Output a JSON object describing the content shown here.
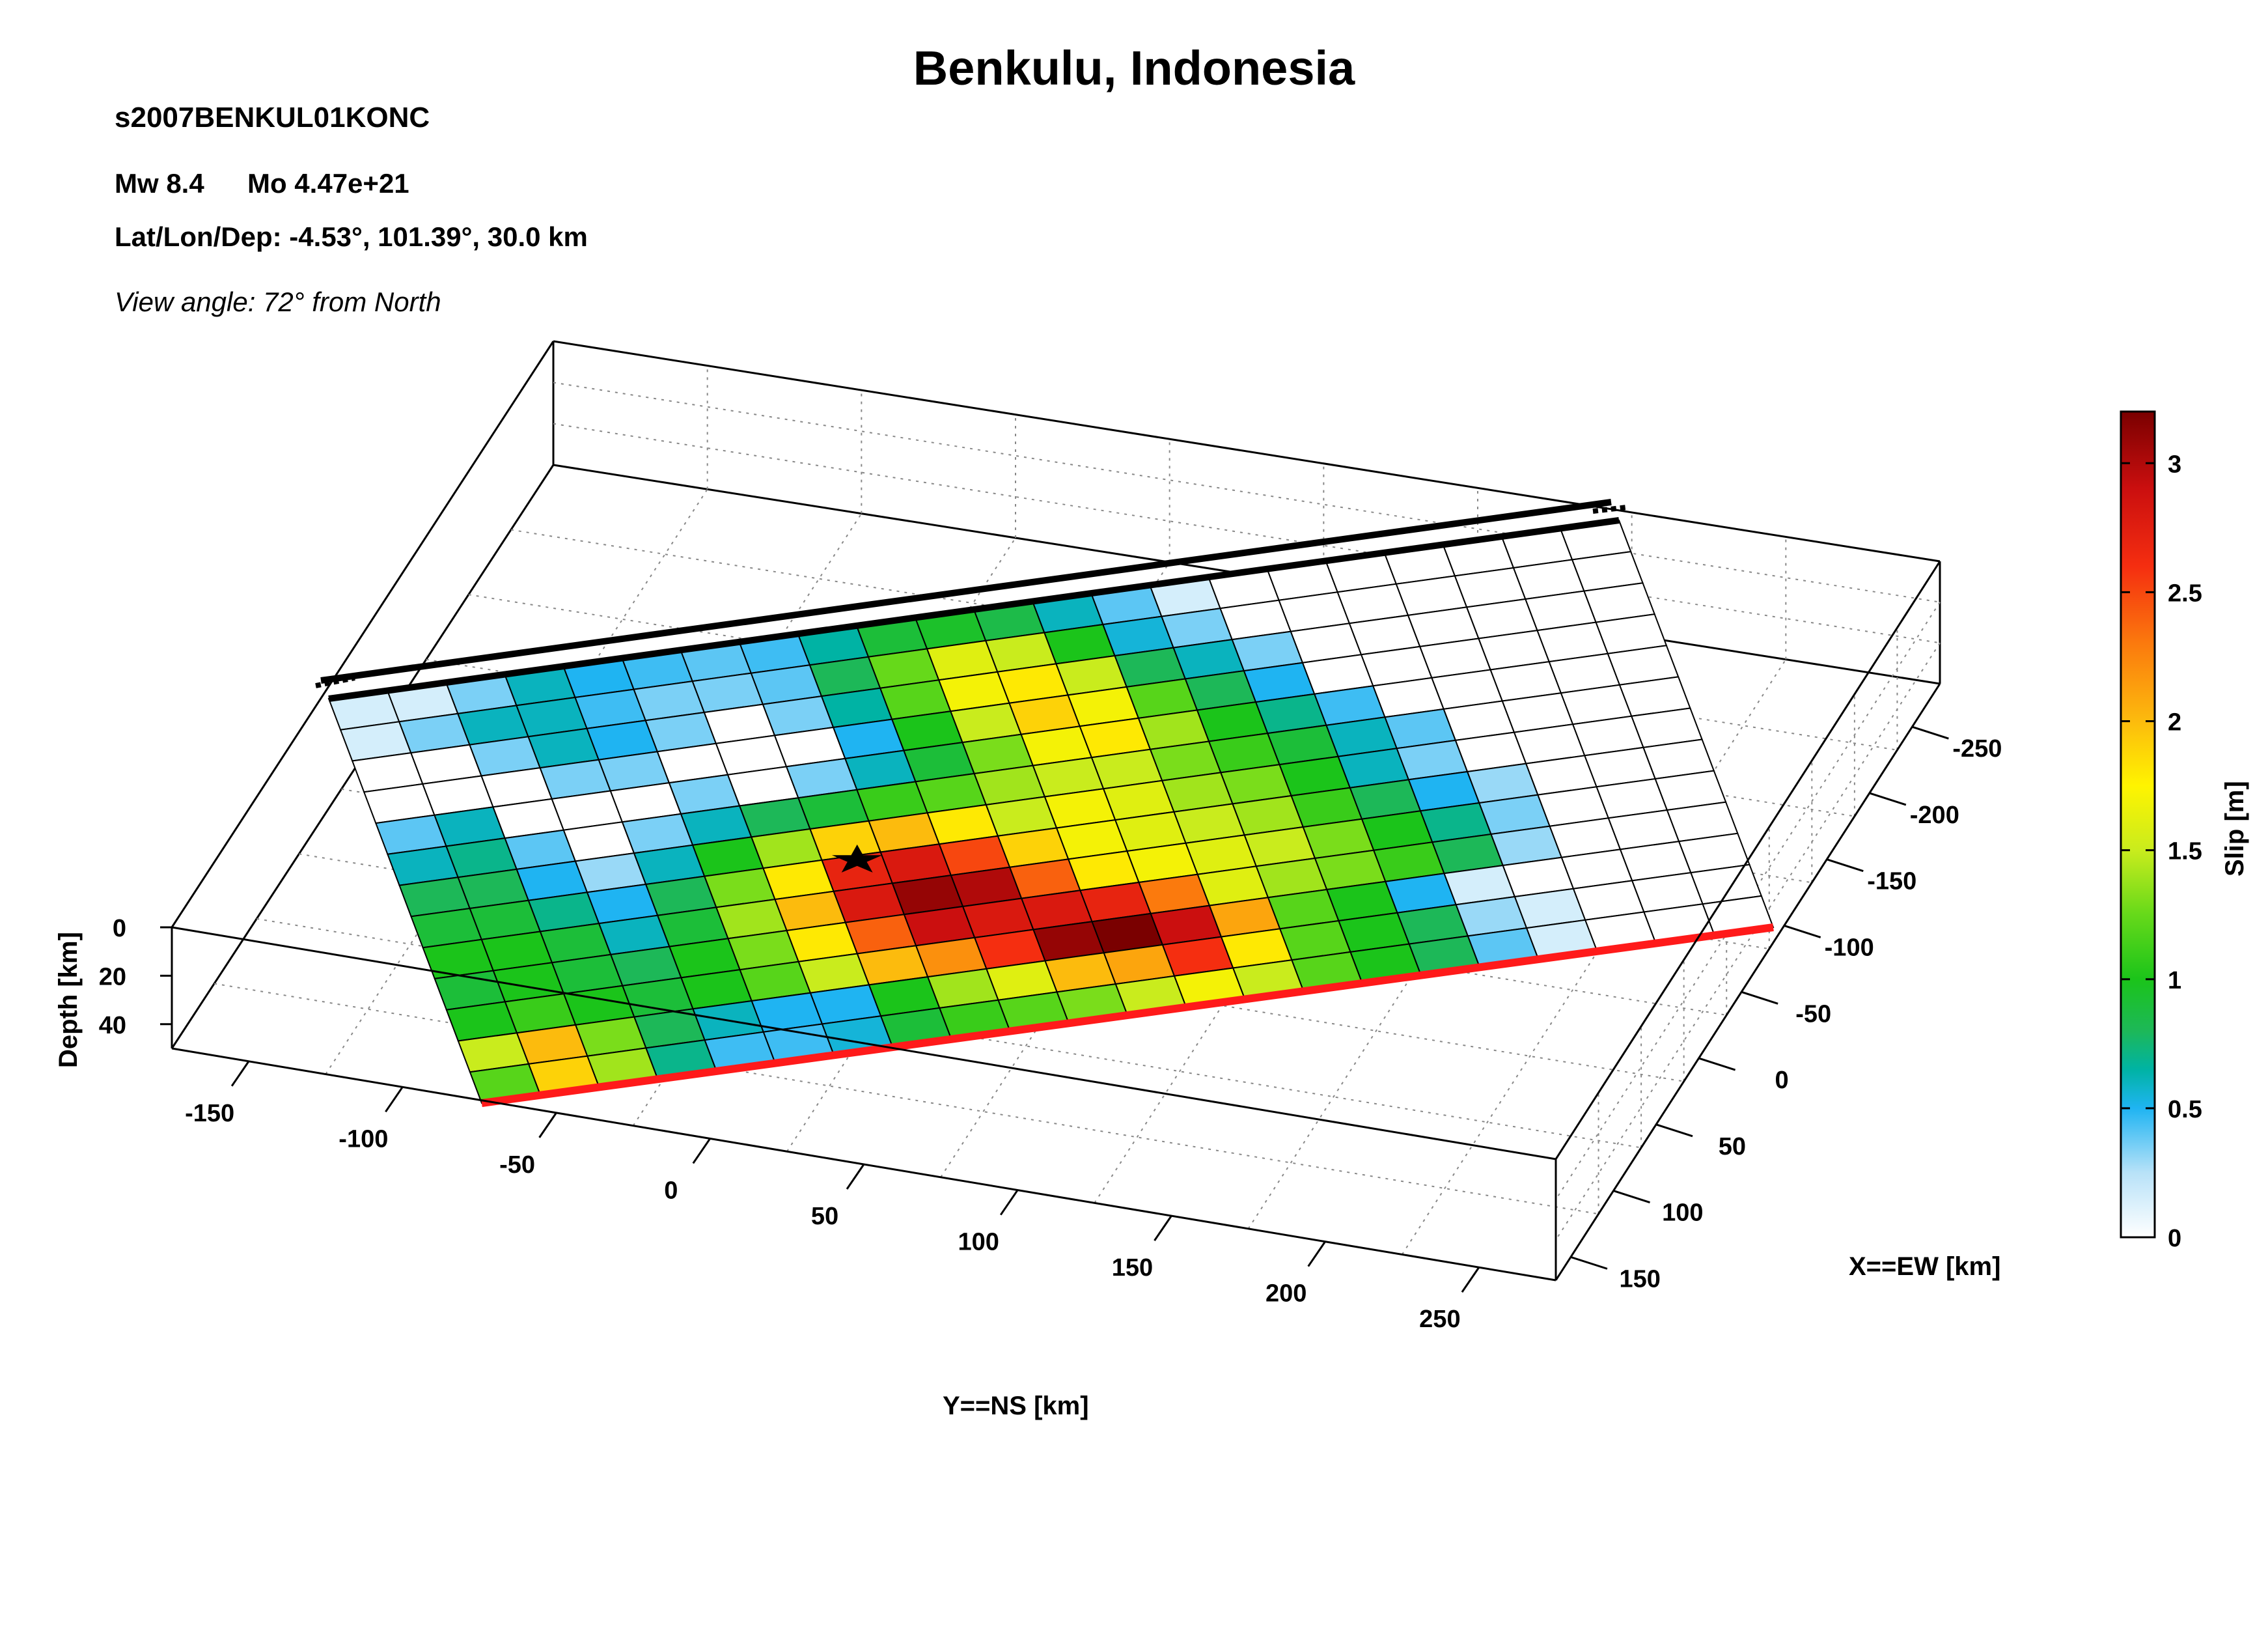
{
  "header": {
    "title": "Benkulu, Indonesia",
    "event_id": "s2007BENKUL01KONC",
    "mw": "Mw 8.4",
    "mo": "Mo 4.47e+21",
    "latlon_label": "Lat/Lon/Dep: -4.53°, 101.39°, 30.0 km",
    "view_angle": "View angle:  72° from North"
  },
  "chart_data": {
    "type": "heatmap",
    "title": "Benkulu, Indonesia",
    "subtitle": "s2007BENKUL01KONC",
    "xlabel": "X==EW [km]",
    "ylabel": "Y==NS [km]",
    "zlabel": "Depth [km]",
    "colorbar_label": "Slip [m]",
    "x_ticks": [
      -250,
      -200,
      -150,
      -100,
      -50,
      0,
      50,
      100,
      150
    ],
    "y_ticks": [
      -150,
      -100,
      -50,
      0,
      50,
      100,
      150,
      200,
      250
    ],
    "z_ticks": [
      0,
      20,
      40
    ],
    "colorbar_ticks": [
      0,
      0.5,
      1,
      1.5,
      2,
      2.5,
      3
    ],
    "clim": [
      0,
      3.2
    ],
    "grid": true,
    "colorbar_position": "right",
    "hypocenter": {
      "row": 7,
      "col": 7,
      "marker": "star"
    },
    "n_along_strike": 22,
    "n_down_dip": 13,
    "slip_rows_updip_to_downdip": [
      [
        0.15,
        0.15,
        0.35,
        0.6,
        0.5,
        0.45,
        0.4,
        0.45,
        0.65,
        0.9,
        0.95,
        0.85,
        0.6,
        0.4,
        0.15,
        0,
        0,
        0,
        0,
        0,
        0,
        0
      ],
      [
        0.15,
        0.35,
        0.6,
        0.6,
        0.45,
        0.35,
        0.35,
        0.4,
        0.8,
        1.25,
        1.6,
        1.5,
        1.0,
        0.55,
        0.35,
        0,
        0,
        0,
        0,
        0,
        0,
        0
      ],
      [
        0,
        0,
        0.35,
        0.6,
        0.5,
        0.35,
        0,
        0.35,
        0.65,
        1.2,
        1.7,
        1.8,
        1.5,
        0.8,
        0.6,
        0.35,
        0,
        0,
        0,
        0,
        0,
        0
      ],
      [
        0,
        0,
        0,
        0.35,
        0.35,
        0,
        0,
        0,
        0.5,
        1.0,
        1.5,
        1.9,
        1.7,
        1.2,
        0.8,
        0.5,
        0,
        0,
        0,
        0,
        0,
        0
      ],
      [
        0.4,
        0.6,
        0,
        0,
        0,
        0.35,
        0,
        0.35,
        0.6,
        0.9,
        1.3,
        1.7,
        1.8,
        1.4,
        1.0,
        0.7,
        0.45,
        0,
        0,
        0,
        0,
        0
      ],
      [
        0.6,
        0.7,
        0.4,
        0,
        0.35,
        0.6,
        0.8,
        0.9,
        1.1,
        1.2,
        1.4,
        1.5,
        1.5,
        1.3,
        1.1,
        0.9,
        0.6,
        0.4,
        0,
        0,
        0,
        0
      ],
      [
        0.8,
        0.8,
        0.5,
        0.3,
        0.6,
        1.0,
        1.4,
        1.9,
        2.0,
        1.8,
        1.5,
        1.7,
        1.6,
        1.4,
        1.3,
        1.0,
        0.6,
        0.35,
        0,
        0,
        0,
        0
      ],
      [
        0.9,
        0.9,
        0.7,
        0.5,
        0.8,
        1.3,
        1.8,
        2.7,
        2.8,
        2.5,
        1.9,
        1.7,
        1.6,
        1.5,
        1.4,
        1.1,
        0.8,
        0.5,
        0.3,
        0,
        0,
        0
      ],
      [
        1.0,
        1.0,
        0.9,
        0.6,
        0.9,
        1.4,
        2.0,
        2.8,
        3.1,
        3.0,
        2.4,
        1.8,
        1.7,
        1.6,
        1.5,
        1.3,
        1.0,
        0.7,
        0.35,
        0,
        0,
        0
      ],
      [
        0.9,
        1.0,
        0.9,
        0.8,
        1.0,
        1.3,
        1.8,
        2.4,
        2.9,
        2.8,
        2.8,
        2.7,
        2.3,
        1.6,
        1.4,
        1.3,
        1.1,
        0.8,
        0.3,
        0,
        0,
        0
      ],
      [
        1.0,
        1.1,
        1.0,
        0.9,
        1.0,
        1.2,
        1.5,
        2.0,
        2.2,
        2.6,
        3.1,
        3.2,
        2.9,
        2.1,
        1.2,
        1.0,
        0.5,
        0.15,
        0,
        0,
        0,
        0
      ],
      [
        1.5,
        2.0,
        1.3,
        0.8,
        0.6,
        0.5,
        0.5,
        1.0,
        1.4,
        1.6,
        2.0,
        2.1,
        2.6,
        1.8,
        1.2,
        1.0,
        0.8,
        0.3,
        0.15,
        0,
        0,
        0
      ],
      [
        1.2,
        1.9,
        1.4,
        0.7,
        0.45,
        0.45,
        0.55,
        0.9,
        1.1,
        1.2,
        1.3,
        1.5,
        1.7,
        1.5,
        1.2,
        1.0,
        0.8,
        0.4,
        0.15,
        0,
        0,
        0
      ]
    ],
    "colormap_stops": [
      {
        "v": 0.0,
        "c": "#ffffff"
      },
      {
        "v": 0.25,
        "c": "#b8e2f8"
      },
      {
        "v": 0.5,
        "c": "#1fb4f2"
      },
      {
        "v": 0.65,
        "c": "#00b3a4"
      },
      {
        "v": 0.8,
        "c": "#1db858"
      },
      {
        "v": 1.0,
        "c": "#1bc41a"
      },
      {
        "v": 1.25,
        "c": "#66d91a"
      },
      {
        "v": 1.5,
        "c": "#c9ec1d"
      },
      {
        "v": 1.75,
        "c": "#fff400"
      },
      {
        "v": 2.0,
        "c": "#fcbb0d"
      },
      {
        "v": 2.3,
        "c": "#fb7a0d"
      },
      {
        "v": 2.6,
        "c": "#f52e10"
      },
      {
        "v": 2.9,
        "c": "#cb0f0f"
      },
      {
        "v": 3.2,
        "c": "#7a0000"
      }
    ]
  }
}
